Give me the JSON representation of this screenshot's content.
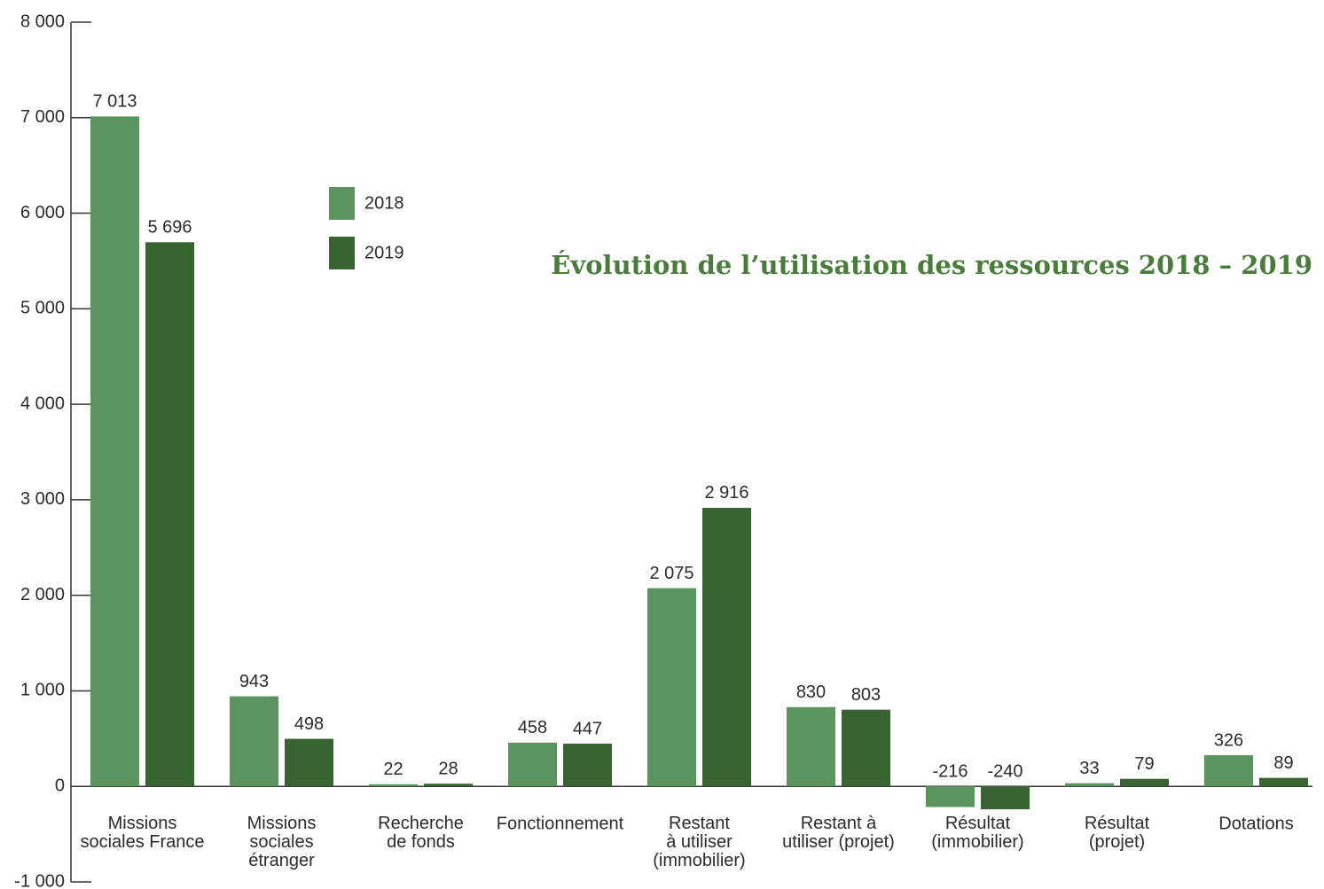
{
  "chart_data": {
    "type": "bar",
    "title": "Évolution de l’utilisation des ressources 2018 – 2019",
    "categories": [
      "Missions\nsociales France",
      "Missions\nsociales\nétranger",
      "Recherche\nde fonds",
      "Fonctionnement",
      "Restant\nà utiliser\n(immobilier)",
      "Restant à\nutiliser (projet)",
      "Résultat\n(immobilier)",
      "Résultat\n(projet)",
      "Dotations"
    ],
    "series": [
      {
        "name": "2018",
        "color": "#5c9460",
        "values": [
          7013,
          943,
          22,
          458,
          2075,
          830,
          -216,
          33,
          326
        ],
        "value_labels": [
          "7 013",
          "943",
          "22",
          "458",
          "2 075",
          "830",
          "-216",
          "33",
          "326"
        ]
      },
      {
        "name": "2019",
        "color": "#376431",
        "values": [
          5696,
          498,
          28,
          447,
          2916,
          803,
          -240,
          79,
          89
        ],
        "value_labels": [
          "5 696",
          "498",
          "28",
          "447",
          "2 916",
          "803",
          "-240",
          "79",
          "89"
        ]
      }
    ],
    "ylim": [
      -1000,
      8000
    ],
    "yticks": [
      {
        "value": -1000,
        "label": "-1 000"
      },
      0,
      {
        "value": 1000,
        "label": "1 000"
      },
      {
        "value": 2000,
        "label": "2 000"
      },
      {
        "value": 3000,
        "label": "3 000"
      },
      {
        "value": 4000,
        "label": "4 000"
      },
      {
        "value": 5000,
        "label": "5 000"
      },
      {
        "value": 6000,
        "label": "6 000"
      },
      {
        "value": 7000,
        "label": "7 000"
      },
      {
        "value": 8000,
        "label": "8 000"
      }
    ]
  }
}
